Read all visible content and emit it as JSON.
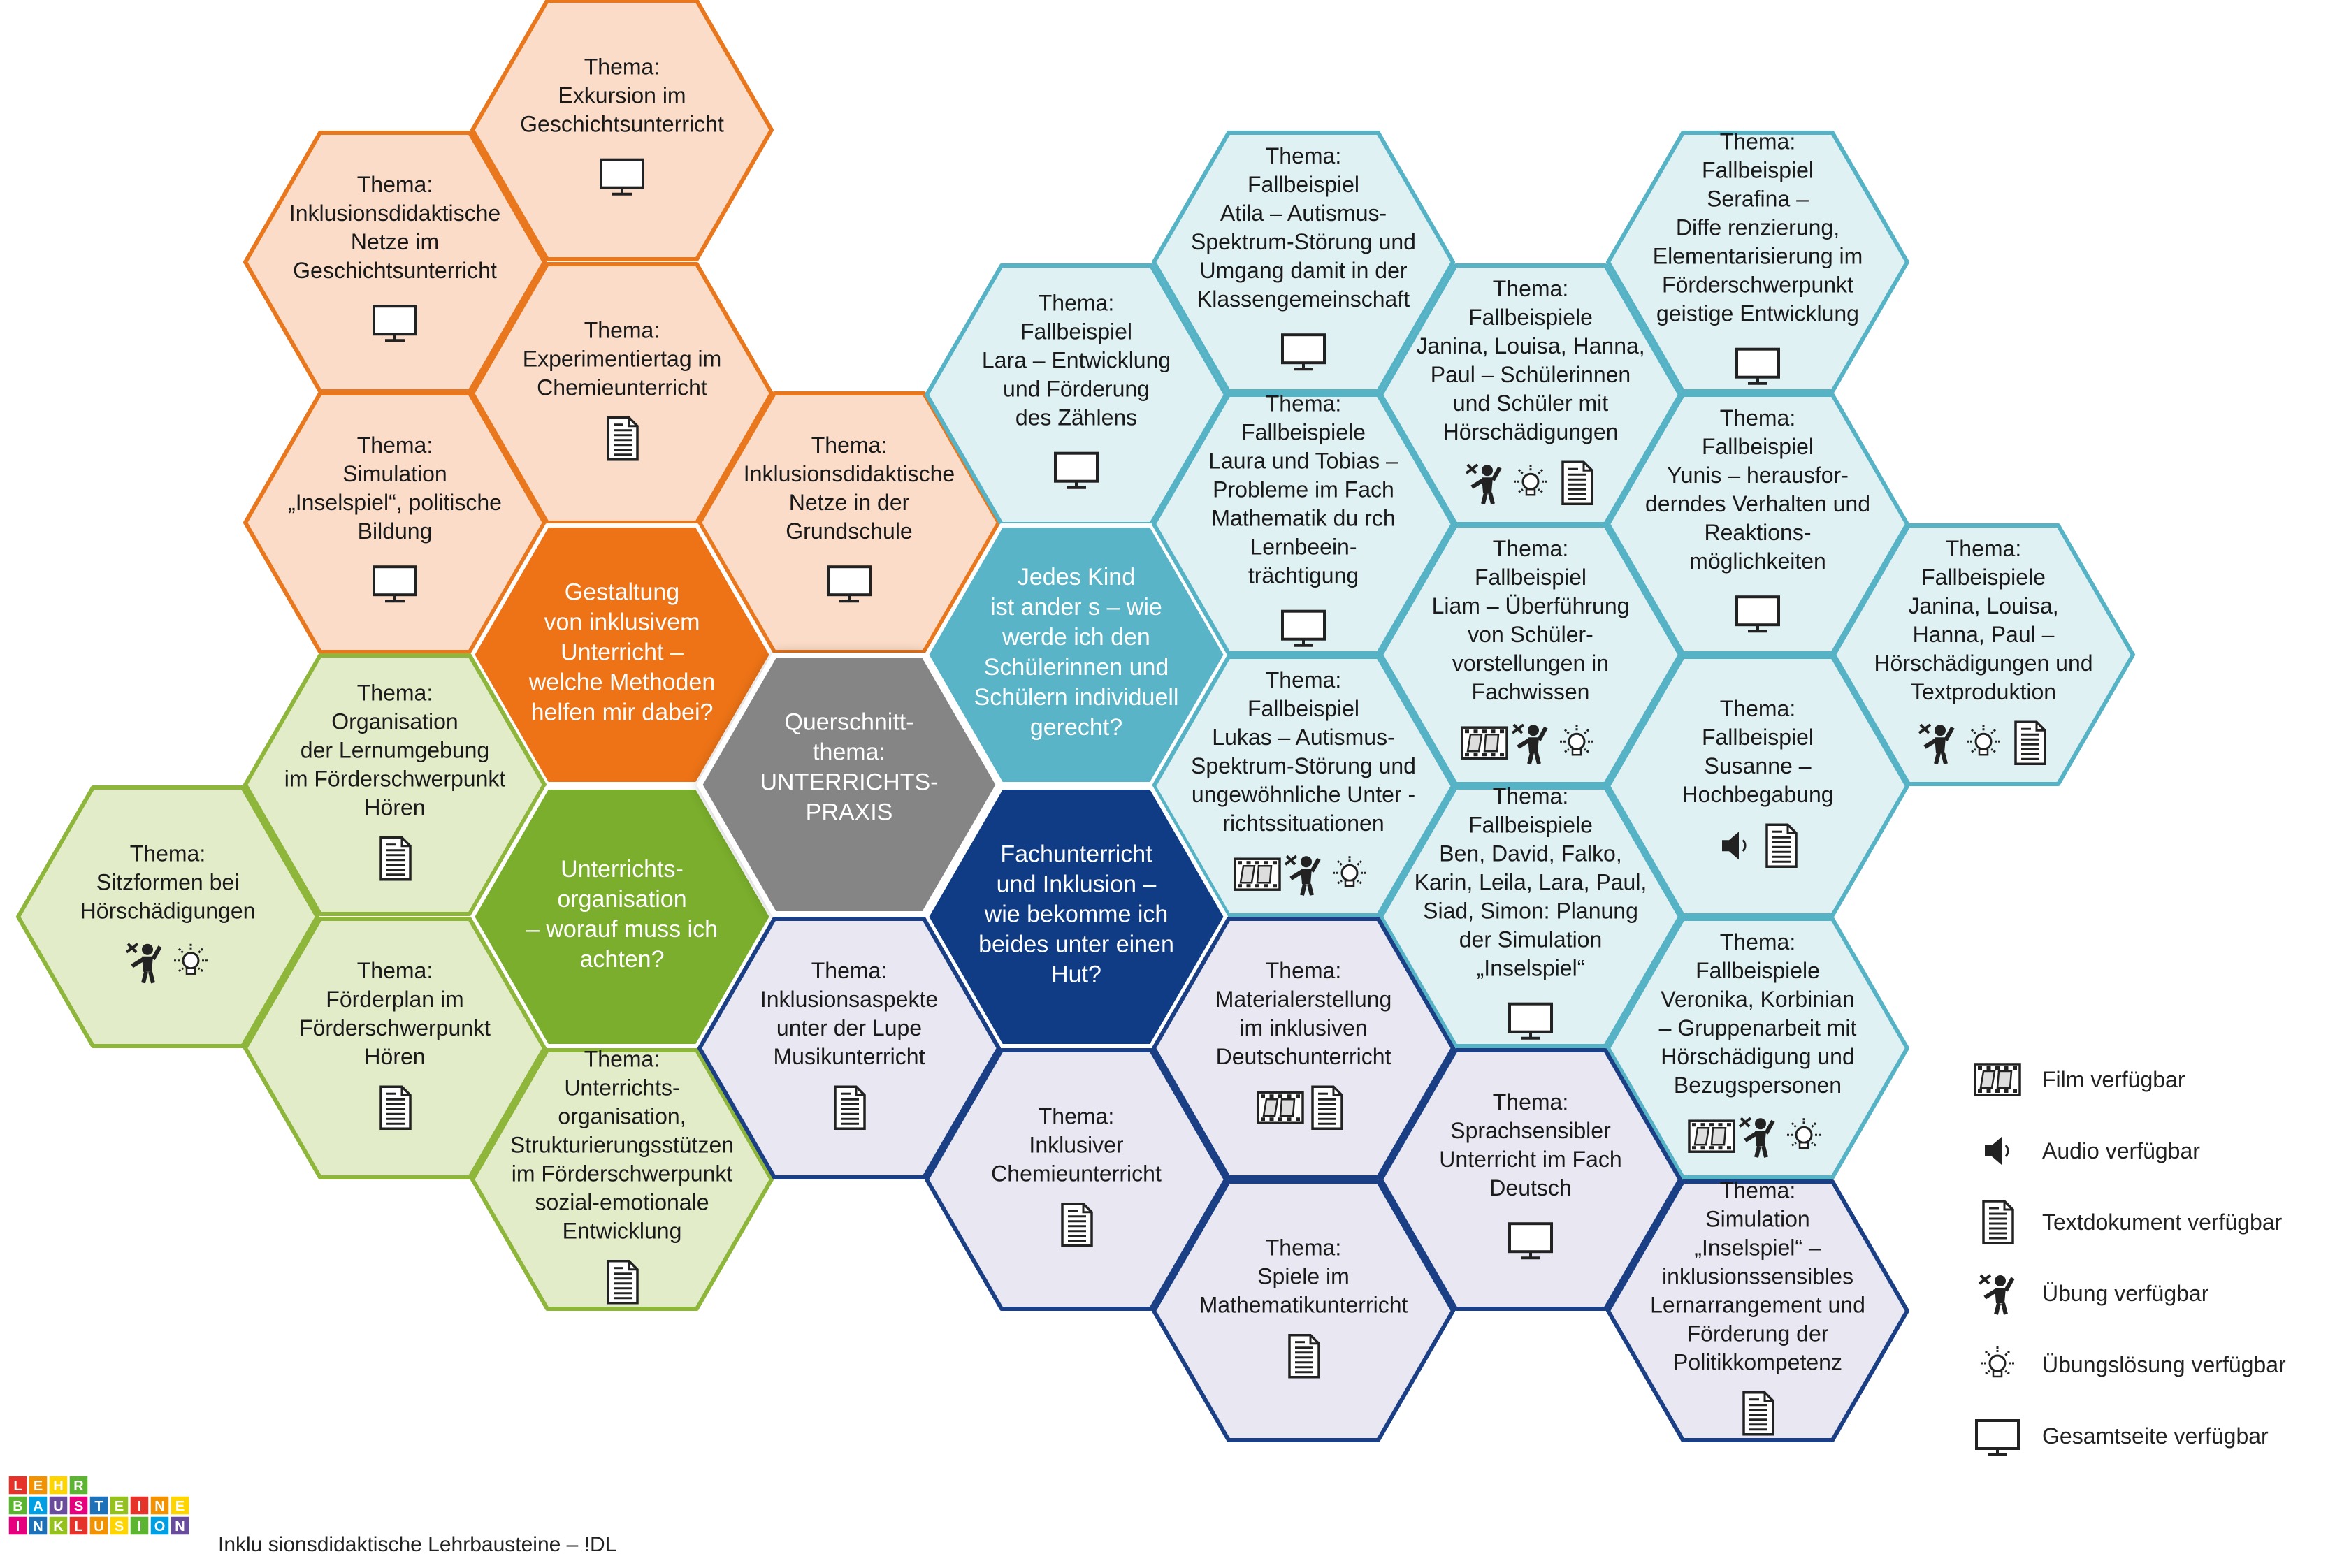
{
  "colors": {
    "orange_fill": "#fbdcc8",
    "orange_stroke": "#e8771e",
    "orange_center": "#ed7316",
    "green_fill": "#e3ecc9",
    "green_stroke": "#8db63b",
    "green_center": "#7aae2c",
    "cyan_fill": "#e0f1f4",
    "cyan_stroke": "#56b2c5",
    "cyan_center": "#5ab4c7",
    "lav_fill": "#e8e7f2",
    "navy_stroke": "#1b3f85",
    "navy_center": "#0f3c85",
    "gray_center": "#858585",
    "icon": "#222222"
  },
  "hexes": [
    {
      "id": "exkursion",
      "theme": "orange",
      "lines": [
        "Thema:",
        "Exkursion im",
        "Geschichtsunterricht"
      ],
      "icons": [
        "monitor-icon"
      ]
    },
    {
      "id": "netze-geschichte",
      "theme": "orange",
      "lines": [
        "Thema:",
        "Inklusionsdidaktische",
        "Netze im",
        "Geschichtsunterricht"
      ],
      "icons": [
        "monitor-icon"
      ]
    },
    {
      "id": "experimentiertag",
      "theme": "orange",
      "lines": [
        "Thema:",
        "Experimentiertag im",
        "Chemieunterricht"
      ],
      "icons": [
        "document-icon"
      ]
    },
    {
      "id": "simulation-inselspiel",
      "theme": "orange",
      "lines": [
        "Thema:",
        "Simulation",
        "„Inselspiel“, politische",
        "Bildung"
      ],
      "icons": [
        "monitor-icon"
      ]
    },
    {
      "id": "netze-grundschule",
      "theme": "orange",
      "lines": [
        "Thema:",
        "Inklusionsdidaktische",
        "Netze in der",
        "Grundschule"
      ],
      "icons": [
        "monitor-icon"
      ]
    },
    {
      "id": "gestaltung",
      "theme": "orange-center",
      "lines": [
        "Gestaltung",
        "von inklusivem",
        "Unterricht –",
        "welche Methoden",
        "helfen mir dabei?"
      ],
      "icons": []
    },
    {
      "id": "organisation-lernumgebung",
      "theme": "green",
      "lines": [
        "Thema:",
        "Organisation",
        "der Lernumgebung",
        "im Förderschwerpunkt",
        "Hören"
      ],
      "icons": [
        "document-icon"
      ]
    },
    {
      "id": "sitzformen",
      "theme": "green",
      "lines": [
        "Thema:",
        "Sitzformen bei",
        "Hörschädigungen"
      ],
      "icons": [
        "exercise-icon",
        "solution-icon"
      ]
    },
    {
      "id": "unterrichtsorganisation-center",
      "theme": "green-center",
      "lines": [
        "Unterrichts-",
        "organisation",
        "– worauf muss ich",
        "achten?"
      ],
      "icons": []
    },
    {
      "id": "foerderplan",
      "theme": "green",
      "lines": [
        "Thema:",
        "Förderplan im",
        "Förderschwerpunkt",
        "Hören"
      ],
      "icons": [
        "document-icon"
      ]
    },
    {
      "id": "strukturierung",
      "theme": "green",
      "lines": [
        "Thema:",
        "Unterrichts-",
        "organisation,",
        "Strukturierungsstützen",
        "im Förderschwerpunkt",
        "sozial-emotionale",
        "Entwicklung"
      ],
      "icons": [
        "document-icon"
      ]
    },
    {
      "id": "querschnitt",
      "theme": "gray-center",
      "lines": [
        "Querschnitt-",
        "thema:",
        "",
        "UNTERRICHTS-",
        "PRAXIS"
      ],
      "icons": []
    },
    {
      "id": "lara",
      "theme": "cyan",
      "lines": [
        "Thema:",
        "Fallbeispiel",
        "Lara – Entwicklung",
        "und Förderung",
        "des Zählens"
      ],
      "icons": [
        "monitor-icon"
      ]
    },
    {
      "id": "jedes-kind",
      "theme": "cyan-center",
      "lines": [
        "Jedes Kind",
        "ist ander s – wie",
        "werde ich den",
        "Schülerinnen und",
        "Schülern individuell",
        "gerecht?"
      ],
      "icons": []
    },
    {
      "id": "atila",
      "theme": "cyan",
      "lines": [
        "Thema:",
        "Fallbeispiel",
        "Atila – Autismus-",
        "Spektrum-Störung und",
        "Umgang damit in der",
        "Klassengemeinschaft"
      ],
      "icons": [
        "monitor-icon"
      ]
    },
    {
      "id": "laura-tobias",
      "theme": "cyan",
      "lines": [
        "Thema:",
        "Fallbeispiele",
        "Laura und Tobias –",
        "Probleme im Fach",
        "Mathematik du rch",
        "Lernbeein-",
        "trächtigung"
      ],
      "icons": [
        "monitor-icon"
      ]
    },
    {
      "id": "lukas",
      "theme": "cyan",
      "lines": [
        "Thema:",
        "Fallbeispiel",
        "Lukas – Autismus-",
        "Spektrum-Störung und",
        "ungewöhnliche Unter -",
        "richtssituationen"
      ],
      "icons": [
        "film-icon",
        "exercise-icon",
        "solution-icon"
      ]
    },
    {
      "id": "janina-1",
      "theme": "cyan",
      "lines": [
        "Thema:",
        "Fallbeispiele",
        "Janina, Louisa, Hanna,",
        "Paul – Schülerinnen",
        "und Schüler mit",
        "Hörschädigungen"
      ],
      "icons": [
        "exercise-icon",
        "solution-icon",
        "document-icon"
      ]
    },
    {
      "id": "liam",
      "theme": "cyan",
      "lines": [
        "Thema:",
        "Fallbeispiel",
        "Liam – Überführung",
        "von Schüler-",
        "vorstellungen in",
        "Fachwissen"
      ],
      "icons": [
        "film-icon",
        "exercise-icon",
        "solution-icon"
      ]
    },
    {
      "id": "ben-david",
      "theme": "cyan",
      "lines": [
        "Thema:",
        "Fallbeispiele",
        "Ben, David, Falko,",
        "Karin, Leila, Lara, Paul,",
        "Siad, Simon: Planung",
        "der Simulation",
        "„Inselspiel“"
      ],
      "icons": [
        "monitor-icon"
      ]
    },
    {
      "id": "serafina",
      "theme": "cyan",
      "lines": [
        "Thema:",
        "Fallbeispiel",
        "Serafina –",
        "Diffe renzierung,",
        "Elementarisierung im",
        "Förderschwerpunkt",
        "geistige Entwicklung"
      ],
      "icons": [
        "monitor-icon"
      ]
    },
    {
      "id": "yunis",
      "theme": "cyan",
      "lines": [
        "Thema:",
        "Fallbeispiel",
        "Yunis – herausfor-",
        "derndes Verhalten und",
        "Reaktions-",
        "möglichkeiten"
      ],
      "icons": [
        "monitor-icon"
      ]
    },
    {
      "id": "susanne",
      "theme": "cyan",
      "lines": [
        "Thema:",
        "Fallbeispiel",
        "Susanne –",
        "Hochbegabung"
      ],
      "icons": [
        "audio-icon",
        "document-icon"
      ]
    },
    {
      "id": "janina-2",
      "theme": "cyan",
      "lines": [
        "Thema:",
        "Fallbeispiele",
        "Janina, Louisa,",
        "Hanna, Paul –",
        "Hörschädigungen und",
        "Textproduktion"
      ],
      "icons": [
        "exercise-icon",
        "solution-icon",
        "document-icon"
      ]
    },
    {
      "id": "veronika",
      "theme": "cyan",
      "lines": [
        "Thema:",
        "Fallbeispiele",
        "Veronika, Korbinian",
        "– Gruppenarbeit mit",
        "Hörschädigung und",
        "Bezugspersonen"
      ],
      "icons": [
        "film-icon",
        "exercise-icon",
        "solution-icon"
      ]
    },
    {
      "id": "fachunterricht",
      "theme": "navy-center",
      "lines": [
        "Fachunterricht",
        "und Inklusion –",
        "wie bekomme ich",
        "beides unter einen",
        "Hut?"
      ],
      "icons": []
    },
    {
      "id": "musik",
      "theme": "lav",
      "lines": [
        "Thema:",
        "Inklusionsaspekte",
        "unter der Lupe",
        "Musikunterricht"
      ],
      "icons": [
        "document-icon"
      ]
    },
    {
      "id": "chemie",
      "theme": "lav",
      "lines": [
        "Thema:",
        "Inklusiver",
        "Chemieunterricht"
      ],
      "icons": [
        "document-icon"
      ]
    },
    {
      "id": "material",
      "theme": "lav",
      "lines": [
        "Thema:",
        "Materialerstellung",
        "im inklusiven",
        "Deutschunterricht"
      ],
      "icons": [
        "film-icon",
        "document-icon"
      ]
    },
    {
      "id": "spiele",
      "theme": "lav",
      "lines": [
        "Thema:",
        "Spiele im",
        "Mathematikunterricht"
      ],
      "icons": [
        "document-icon"
      ]
    },
    {
      "id": "sprachsensibel",
      "theme": "lav",
      "lines": [
        "Thema:",
        "Sprachsensibler",
        "Unterricht im  Fach",
        "Deutsch"
      ],
      "icons": [
        "monitor-icon"
      ]
    },
    {
      "id": "simulation-politik",
      "theme": "lav",
      "lines": [
        "Thema:",
        "Simulation",
        "„Inselspiel“ –",
        "inklusionssensibles",
        "Lernarrangement und",
        "Förderung der",
        "Politikkompetenz"
      ],
      "icons": [
        "document-icon"
      ]
    }
  ],
  "legend": [
    {
      "icon": "film-icon",
      "label": "Film verfügbar"
    },
    {
      "icon": "audio-icon",
      "label": "Audio verfügbar"
    },
    {
      "icon": "document-icon",
      "label": "Textdokument verfügbar"
    },
    {
      "icon": "exercise-icon",
      "label": "Übung verfügbar"
    },
    {
      "icon": "solution-icon",
      "label": "Übungslösung verfügbar"
    },
    {
      "icon": "monitor-icon",
      "label": "Gesamtseite verfügbar"
    }
  ],
  "logo": {
    "row1": [
      "L",
      "E",
      "H",
      "R"
    ],
    "row2": [
      "B",
      "A",
      "U",
      "S",
      "T",
      "E",
      "I",
      "N",
      "E"
    ],
    "row3": [
      "I",
      "N",
      "K",
      "L",
      "U",
      "S",
      "I",
      "O",
      "N"
    ]
  },
  "footer": {
    "text": "Inklu sionsdidaktische Lehrbausteine – !DL"
  }
}
